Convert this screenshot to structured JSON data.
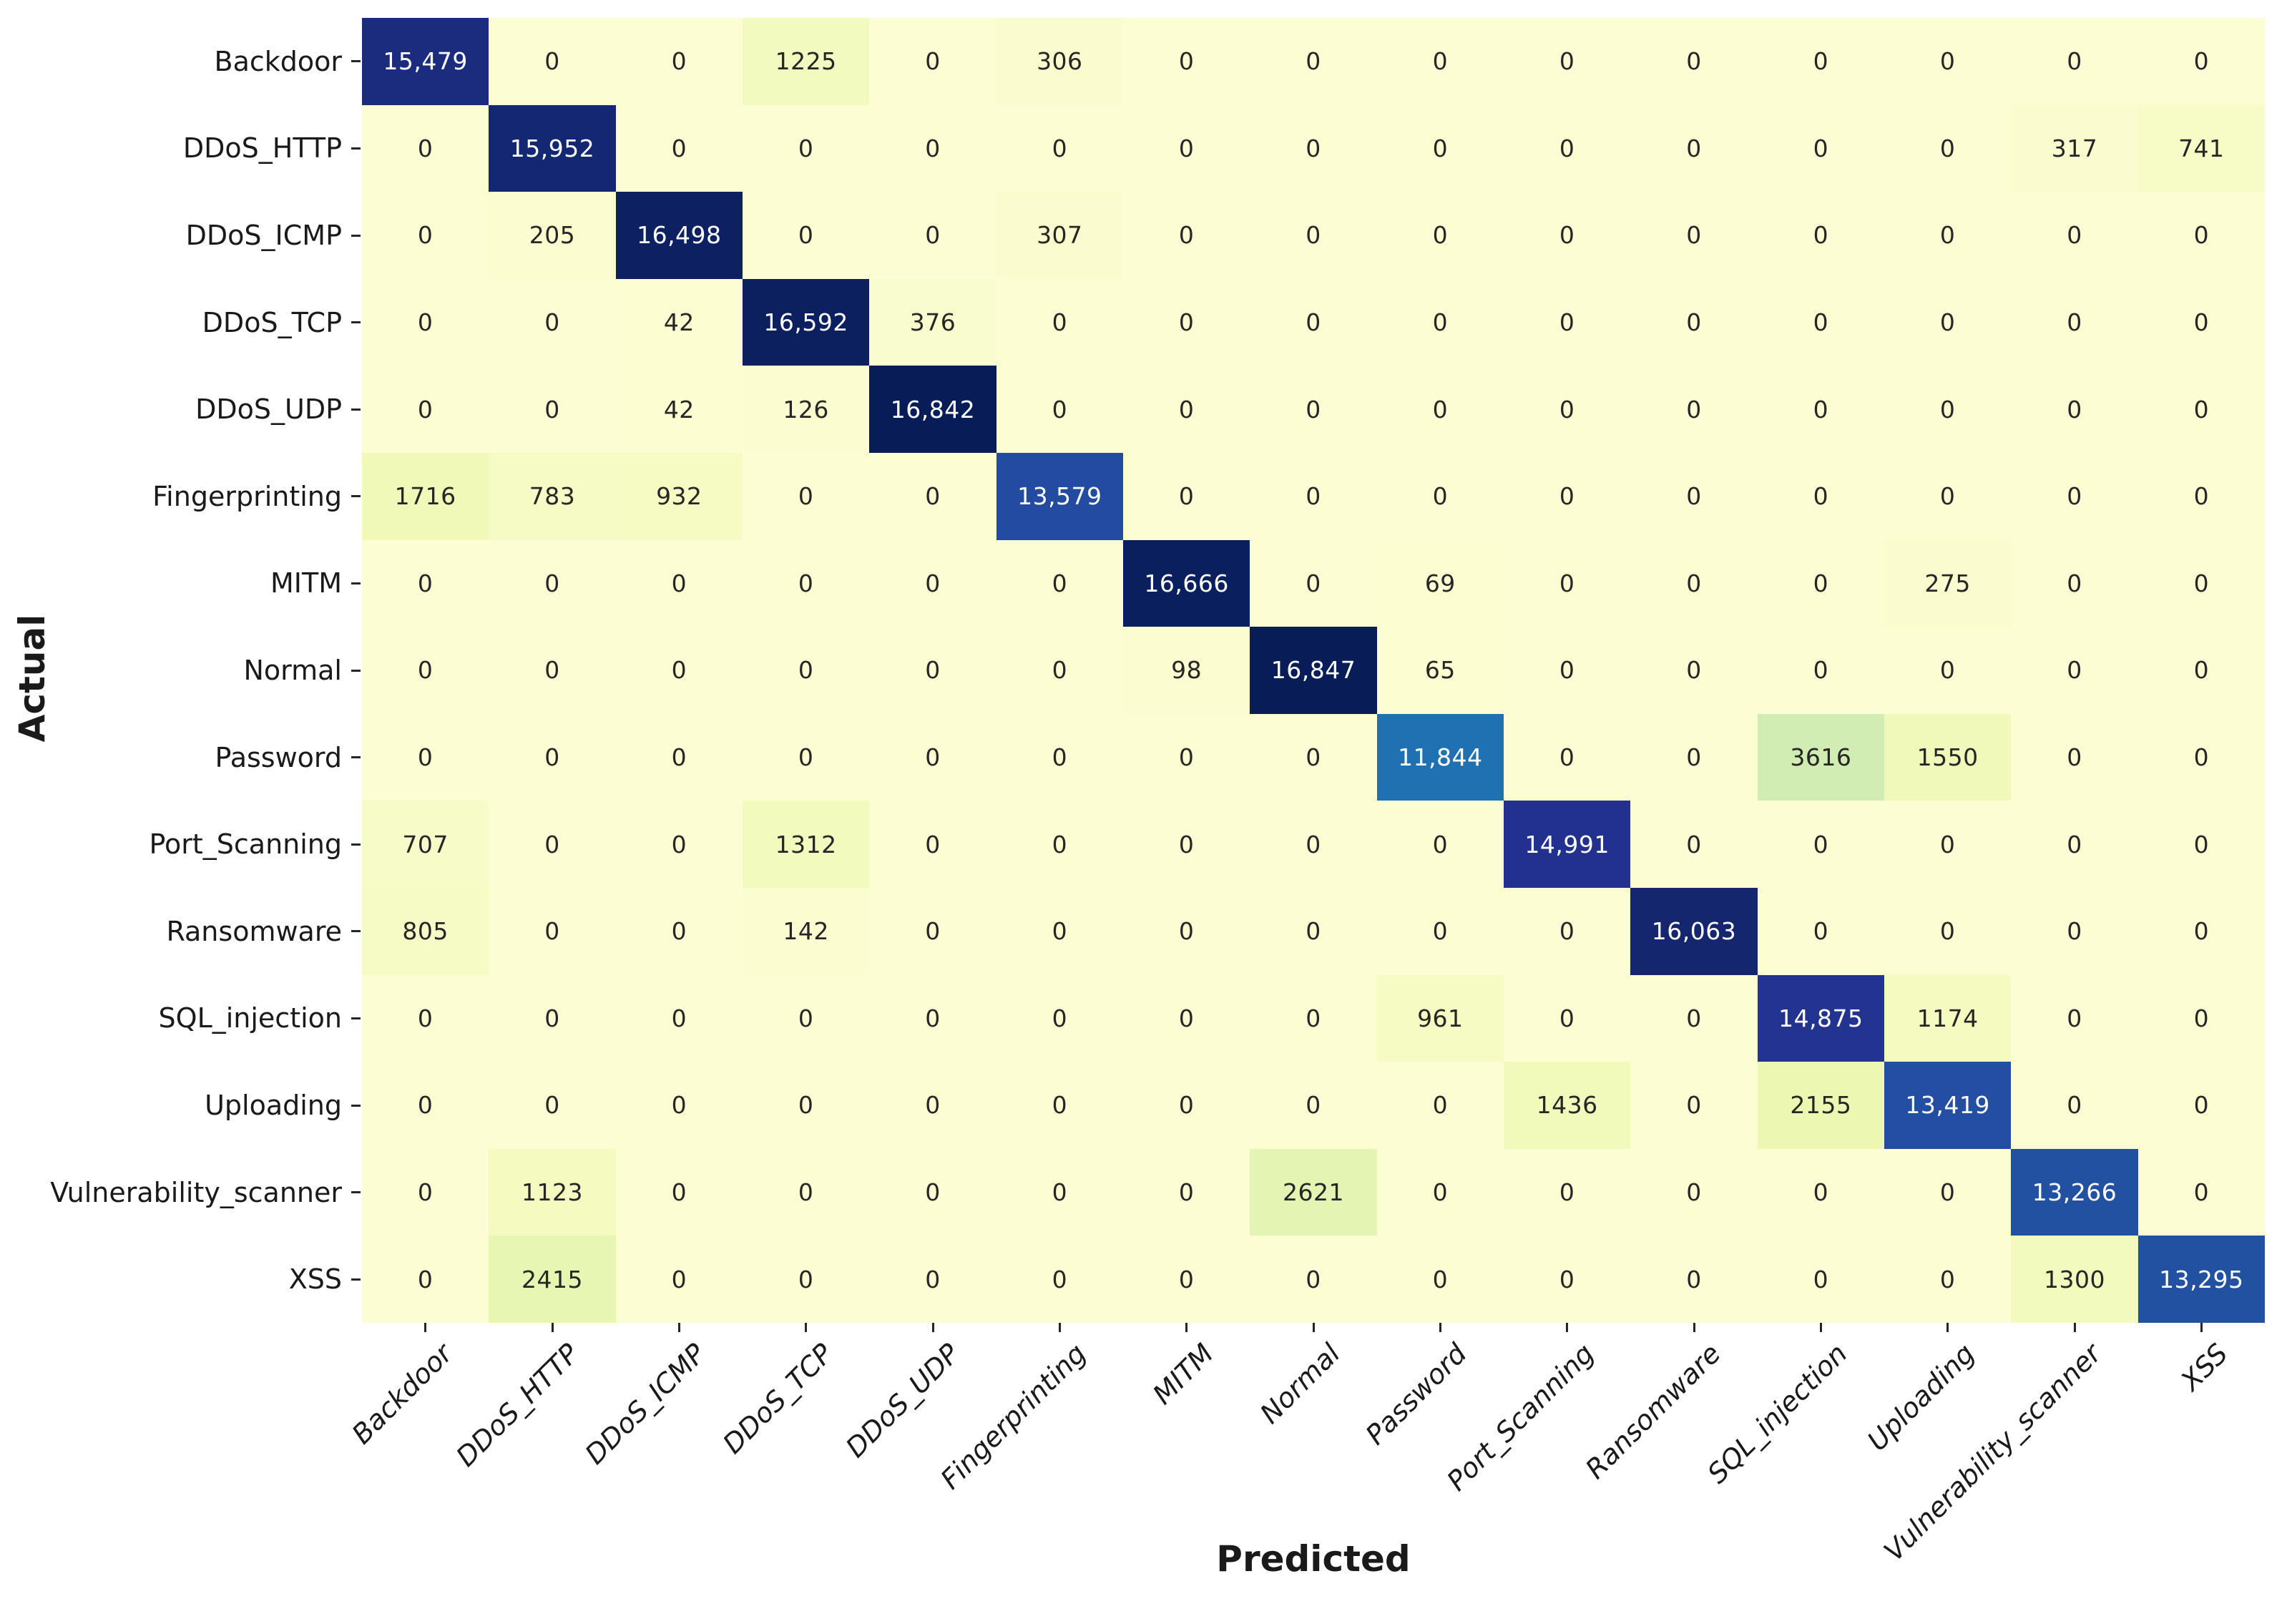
{
  "chart_data": {
    "type": "heatmap",
    "title": "",
    "xlabel": "Predicted",
    "ylabel": "Actual",
    "classes": [
      "Backdoor",
      "DDoS_HTTP",
      "DDoS_ICMP",
      "DDoS_TCP",
      "DDoS_UDP",
      "Fingerprinting",
      "MITM",
      "Normal",
      "Password",
      "Port_Scanning",
      "Ransomware",
      "SQL_injection",
      "Uploading",
      "Vulnerability_scanner",
      "XSS"
    ],
    "matrix": [
      [
        15479,
        0,
        0,
        1225,
        0,
        306,
        0,
        0,
        0,
        0,
        0,
        0,
        0,
        0,
        0
      ],
      [
        0,
        15952,
        0,
        0,
        0,
        0,
        0,
        0,
        0,
        0,
        0,
        0,
        0,
        317,
        741
      ],
      [
        0,
        205,
        16498,
        0,
        0,
        307,
        0,
        0,
        0,
        0,
        0,
        0,
        0,
        0,
        0
      ],
      [
        0,
        0,
        42,
        16592,
        376,
        0,
        0,
        0,
        0,
        0,
        0,
        0,
        0,
        0,
        0
      ],
      [
        0,
        0,
        42,
        126,
        16842,
        0,
        0,
        0,
        0,
        0,
        0,
        0,
        0,
        0,
        0
      ],
      [
        1716,
        783,
        932,
        0,
        0,
        13579,
        0,
        0,
        0,
        0,
        0,
        0,
        0,
        0,
        0
      ],
      [
        0,
        0,
        0,
        0,
        0,
        0,
        16666,
        0,
        69,
        0,
        0,
        0,
        275,
        0,
        0
      ],
      [
        0,
        0,
        0,
        0,
        0,
        0,
        98,
        16847,
        65,
        0,
        0,
        0,
        0,
        0,
        0
      ],
      [
        0,
        0,
        0,
        0,
        0,
        0,
        0,
        0,
        11844,
        0,
        0,
        3616,
        1550,
        0,
        0
      ],
      [
        707,
        0,
        0,
        1312,
        0,
        0,
        0,
        0,
        0,
        14991,
        0,
        0,
        0,
        0,
        0
      ],
      [
        805,
        0,
        0,
        142,
        0,
        0,
        0,
        0,
        0,
        0,
        16063,
        0,
        0,
        0,
        0
      ],
      [
        0,
        0,
        0,
        0,
        0,
        0,
        0,
        0,
        961,
        0,
        0,
        14875,
        1174,
        0,
        0
      ],
      [
        0,
        0,
        0,
        0,
        0,
        0,
        0,
        0,
        0,
        1436,
        0,
        2155,
        13419,
        0,
        0
      ],
      [
        0,
        1123,
        0,
        0,
        0,
        0,
        0,
        2621,
        0,
        0,
        0,
        0,
        0,
        13266,
        0
      ],
      [
        0,
        2415,
        0,
        0,
        0,
        0,
        0,
        0,
        0,
        0,
        0,
        0,
        0,
        1300,
        13295
      ]
    ],
    "vmin": 0,
    "vmax": 16847,
    "annotated": true,
    "number_format": "comma separators only for values >= 10000",
    "colormap_name": "YlGnBu",
    "colormap_stops": [
      [
        0.0,
        "#fcfdd2"
      ],
      [
        0.125,
        "#edf8b1"
      ],
      [
        0.25,
        "#c7e9b4"
      ],
      [
        0.375,
        "#7fcdbb"
      ],
      [
        0.5,
        "#41b6c4"
      ],
      [
        0.625,
        "#1d91c0"
      ],
      [
        0.75,
        "#225ea8"
      ],
      [
        0.875,
        "#253494"
      ],
      [
        1.0,
        "#081d58"
      ]
    ],
    "annotation_text_dark": "#262626",
    "annotation_text_light": "#ffffff",
    "tick_color": "#262626",
    "axis_label_color": "#1a1a1a",
    "legend": "none",
    "grid": "off",
    "x_tick_rotation_deg": 45,
    "x_tick_style": "italic"
  }
}
